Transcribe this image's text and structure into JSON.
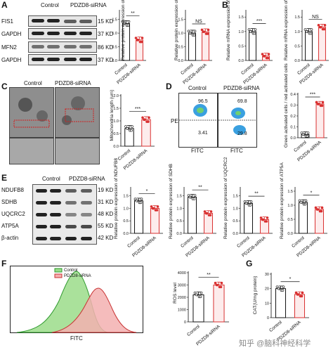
{
  "panel_a": {
    "label": "A",
    "lanes": [
      "Control",
      "PDZD8-siRNA"
    ],
    "blots": [
      {
        "name": "FIS1",
        "kd": "15 KD"
      },
      {
        "name": "GAPDH",
        "kd": "37 KD"
      },
      {
        "name": "MFN2",
        "kd": "86 KD"
      },
      {
        "name": "GAPDH",
        "kd": "37 KD"
      }
    ],
    "chart1": {
      "ylabel": "Relative protein expression of FIS1",
      "sig": "**",
      "ticks": [
        "0.0",
        "0.5",
        "1.0",
        "1.5"
      ]
    },
    "chart2": {
      "ylabel": "Relative protein expression of MFN2",
      "sig": "NS",
      "ticks": [
        "0.0",
        "0.5",
        "1.0",
        "1.5"
      ]
    }
  },
  "panel_b": {
    "label": "B",
    "chart1": {
      "ylabel": "Relative mRNA expression of Fis1",
      "sig": "***",
      "ticks": [
        "0.0",
        "0.5",
        "1.0",
        "1.5"
      ]
    },
    "chart2": {
      "ylabel": "Relative mRNA expression of Mfn2",
      "sig": "NS",
      "ticks": [
        "0.0",
        "0.5",
        "1.0",
        "1.5"
      ]
    }
  },
  "panel_c": {
    "label": "C",
    "images": [
      "Control",
      "PDZD8-siRNA"
    ],
    "chart": {
      "ylabel": "Mitochondria length (um)",
      "sig": "***",
      "ticks": [
        "0.0",
        "0.5",
        "1.0",
        "1.5",
        "2.0"
      ]
    }
  },
  "panel_d": {
    "label": "D",
    "plots": [
      {
        "title": "Control",
        "q_upper": "96.5",
        "q_lower": "3.41"
      },
      {
        "title": "PDZD8-siRNA",
        "q_upper": "69.8",
        "q_lower": "29.8"
      }
    ],
    "ylab": "PE",
    "xlab": "FITC",
    "chart": {
      "ylabel": "Green activated cells / red activated cells",
      "sig": "***",
      "ticks": [
        "0.0",
        "0.1",
        "0.2",
        "0.3",
        "0.4"
      ]
    }
  },
  "panel_e": {
    "label": "E",
    "lanes": [
      "Control",
      "PDZD8-siRNA"
    ],
    "blots": [
      {
        "name": "NDUFB8",
        "kd": "19 KD"
      },
      {
        "name": "SDHB",
        "kd": "31 KD"
      },
      {
        "name": "UQCRC2",
        "kd": "48 KD"
      },
      {
        "name": "ATP5A",
        "kd": "55 KD"
      },
      {
        "name": "β-actin",
        "kd": "42 KD"
      }
    ],
    "charts": [
      {
        "ylabel": "Relative protein expression of NDUFB8",
        "sig": "*",
        "ticks": [
          "0.0",
          "0.5",
          "1.0",
          "1.5"
        ]
      },
      {
        "ylabel": "Relative protein expression of SDHB",
        "sig": "**",
        "ticks": [
          "0.0",
          "0.5",
          "1.0",
          "1.5"
        ]
      },
      {
        "ylabel": "Relative protein expression of UQCRC2",
        "sig": "**",
        "ticks": [
          "0.0",
          "0.5",
          "1.0",
          "1.5"
        ]
      },
      {
        "ylabel": "Relative protein expression of ATP5A",
        "sig": "*",
        "ticks": [
          "0.0",
          "0.5",
          "1.0",
          "1.5"
        ]
      }
    ]
  },
  "panel_f": {
    "label": "F",
    "legend": [
      "Control",
      "PDZD8-siRNA"
    ],
    "xlab": "FITC",
    "chart": {
      "ylabel": "ROS level",
      "sig": "**",
      "ticks": [
        "0",
        "1000",
        "2000",
        "3000",
        "4000"
      ]
    }
  },
  "panel_g": {
    "label": "G",
    "chart": {
      "ylabel": "CAT(U/mg protein)",
      "sig": "*",
      "ticks": [
        "0",
        "10",
        "20",
        "30"
      ]
    }
  },
  "groups": [
    "Control",
    "PDZD8-siRNA"
  ],
  "watermark": "知乎 @脑科神经科学",
  "colors": {
    "control": "#111111",
    "sirna": "#d93030",
    "sirna_fill": "#f3c2c2",
    "gfp": "#8fd07a",
    "gfp_line": "#2e9a2e"
  },
  "chart_data": [
    {
      "type": "bar",
      "panel": "A",
      "categories": [
        "Control",
        "PDZD8-siRNA"
      ],
      "values": [
        1.35,
        0.75
      ],
      "ylim": [
        0,
        1.8
      ],
      "ylabel": "Relative protein expression of FIS1",
      "xlabel": ""
    },
    {
      "type": "bar",
      "panel": "A",
      "categories": [
        "Control",
        "PDZD8-siRNA"
      ],
      "values": [
        1.0,
        1.05
      ],
      "ylim": [
        0,
        1.8
      ],
      "ylabel": "Relative protein expression of MFN2",
      "xlabel": ""
    },
    {
      "type": "bar",
      "panel": "B",
      "categories": [
        "Control",
        "PDZD8-siRNA"
      ],
      "values": [
        1.0,
        0.15
      ],
      "ylim": [
        0,
        1.7
      ],
      "ylabel": "Relative mRNA expression of Fis1",
      "xlabel": ""
    },
    {
      "type": "bar",
      "panel": "B",
      "categories": [
        "Control",
        "PDZD8-siRNA"
      ],
      "values": [
        1.0,
        1.15
      ],
      "ylim": [
        0,
        1.7
      ],
      "ylabel": "Relative mRNA expression of Mfn2",
      "xlabel": ""
    },
    {
      "type": "bar",
      "panel": "C",
      "categories": [
        "Control",
        "PDZD8-siRNA"
      ],
      "values": [
        0.7,
        1.05
      ],
      "ylim": [
        0,
        2.0
      ],
      "ylabel": "Mitochondria length (um)",
      "xlabel": ""
    },
    {
      "type": "bar",
      "panel": "D",
      "categories": [
        "Control",
        "PDZD8-siRNA"
      ],
      "values": [
        0.03,
        0.31
      ],
      "ylim": [
        0,
        0.4
      ],
      "ylabel": "Green activated cells / red activated cells",
      "xlabel": ""
    },
    {
      "type": "bar",
      "panel": "E",
      "categories": [
        "Control",
        "PDZD8-siRNA"
      ],
      "values": [
        1.3,
        1.0
      ],
      "ylim": [
        0,
        1.8
      ],
      "ylabel": "Relative protein expression of NDUFB8",
      "xlabel": ""
    },
    {
      "type": "bar",
      "panel": "E",
      "categories": [
        "Control",
        "PDZD8-siRNA"
      ],
      "values": [
        1.45,
        0.8
      ],
      "ylim": [
        0,
        1.8
      ],
      "ylabel": "Relative protein expression of SDHB",
      "xlabel": ""
    },
    {
      "type": "bar",
      "panel": "E",
      "categories": [
        "Control",
        "PDZD8-siRNA"
      ],
      "values": [
        1.2,
        0.55
      ],
      "ylim": [
        0,
        1.8
      ],
      "ylabel": "Relative protein expression of UQCRC2",
      "xlabel": ""
    },
    {
      "type": "bar",
      "panel": "E",
      "categories": [
        "Control",
        "PDZD8-siRNA"
      ],
      "values": [
        1.1,
        0.85
      ],
      "ylim": [
        0,
        1.6
      ],
      "ylabel": "Relative protein expression of ATP5A",
      "xlabel": ""
    },
    {
      "type": "bar",
      "panel": "F",
      "categories": [
        "Control",
        "PDZD8-siRNA"
      ],
      "values": [
        2200,
        3000
      ],
      "ylim": [
        0,
        4000
      ],
      "ylabel": "ROS level",
      "xlabel": ""
    },
    {
      "type": "bar",
      "panel": "G",
      "categories": [
        "Control",
        "PDZD8-siRNA"
      ],
      "values": [
        20,
        16
      ],
      "ylim": [
        0,
        30
      ],
      "ylabel": "CAT(U/mg protein)",
      "xlabel": ""
    }
  ]
}
